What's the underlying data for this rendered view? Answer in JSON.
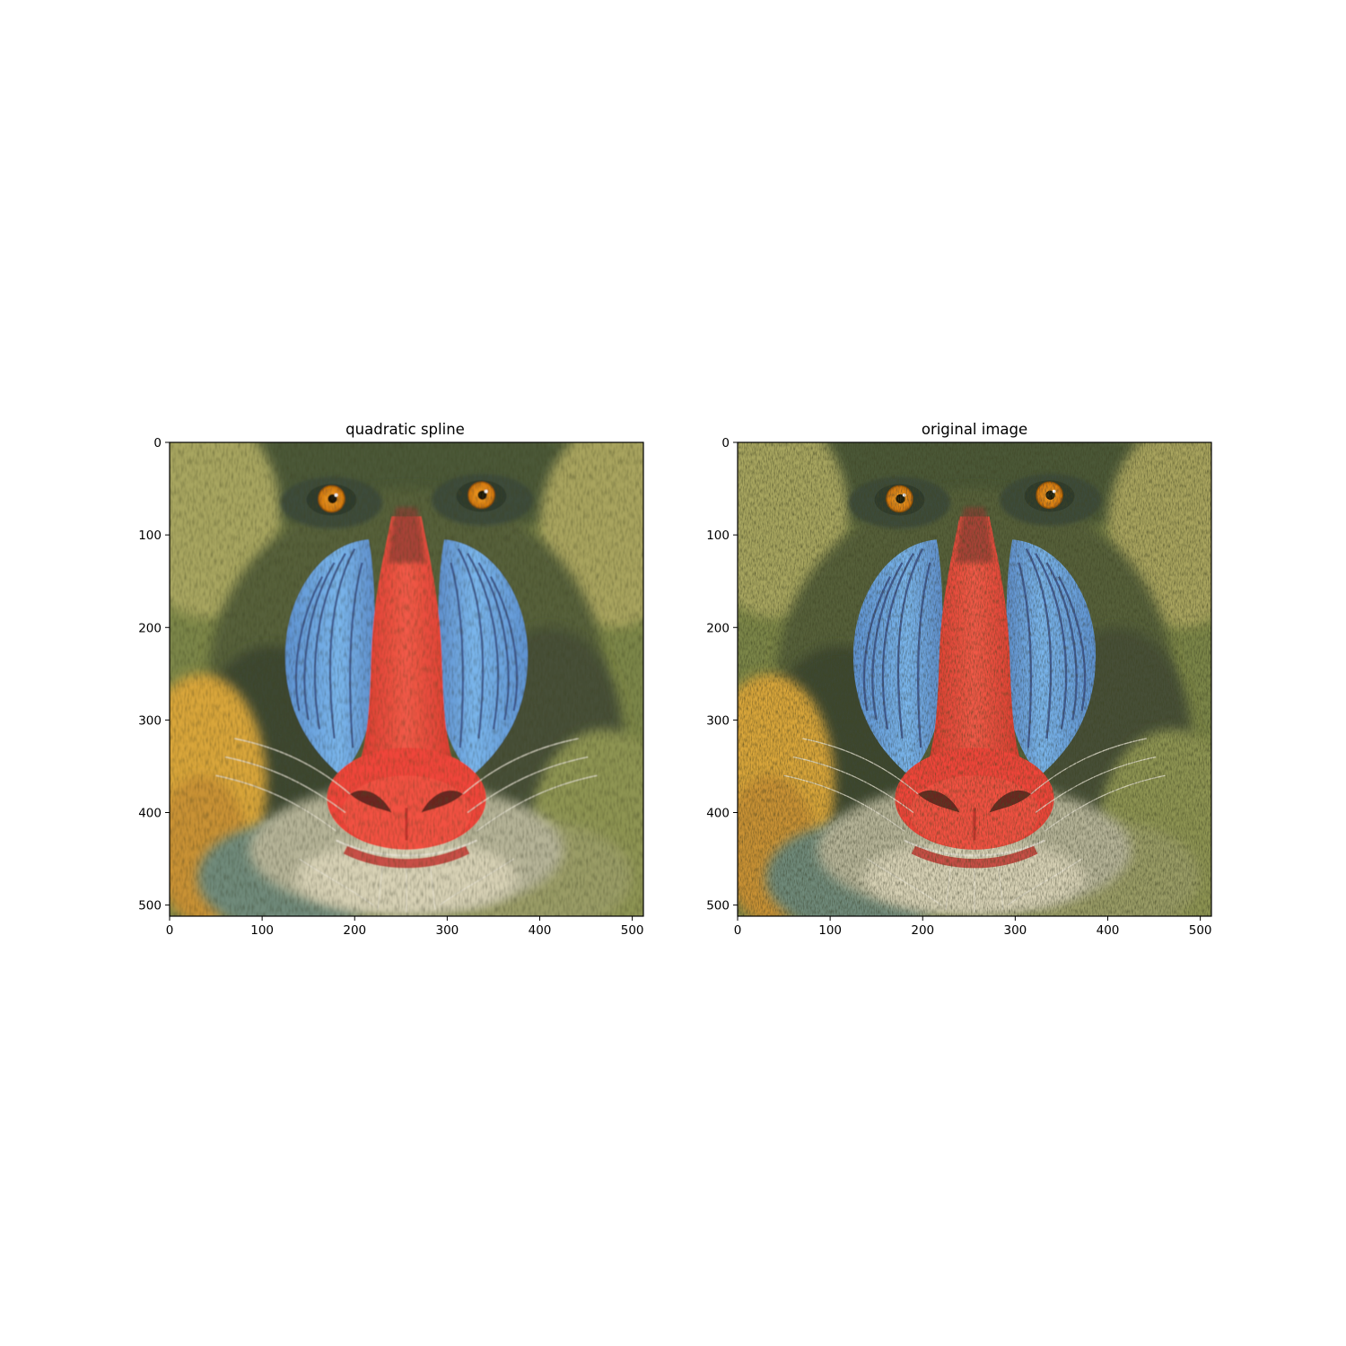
{
  "chart_data": [
    {
      "type": "image",
      "title": "quadratic spline",
      "image_extent": {
        "x": [
          0,
          512
        ],
        "y": [
          512,
          0
        ]
      },
      "xlim": [
        0,
        512
      ],
      "ylim": [
        512,
        0
      ],
      "xticks": [
        0,
        100,
        200,
        300,
        400,
        500
      ],
      "yticks": [
        0,
        100,
        200,
        300,
        400,
        500
      ],
      "xtick_labels": [
        "0",
        "100",
        "200",
        "300",
        "400",
        "500"
      ],
      "ytick_labels": [
        "0",
        "100",
        "200",
        "300",
        "400",
        "500"
      ],
      "grid": false,
      "content": "mandrill-face-upsampled",
      "smooth": true
    },
    {
      "type": "image",
      "title": "original image",
      "image_extent": {
        "x": [
          0,
          512
        ],
        "y": [
          512,
          0
        ]
      },
      "xlim": [
        0,
        512
      ],
      "ylim": [
        512,
        0
      ],
      "xticks": [
        0,
        100,
        200,
        300,
        400,
        500
      ],
      "yticks": [
        0,
        100,
        200,
        300,
        400,
        500
      ],
      "xtick_labels": [
        "0",
        "100",
        "200",
        "300",
        "400",
        "500"
      ],
      "ytick_labels": [
        "0",
        "100",
        "200",
        "300",
        "400",
        "500"
      ],
      "grid": false,
      "content": "mandrill-face",
      "smooth": false
    }
  ],
  "colors": {
    "fur_dark": "#3f4a2c",
    "fur_olive": "#7f8a4a",
    "fur_light": "#b9b56e",
    "fur_yellow": "#d9a63a",
    "fur_teal": "#4d6e6a",
    "cheek_blue": "#6ea7e0",
    "cheek_stripe": "#3a4f86",
    "nose_red": "#f0453a",
    "nose_dark": "#8a2a28",
    "eye_orange": "#e08a16",
    "pupil": "#1a1208",
    "beard": "#d8d6c8"
  }
}
